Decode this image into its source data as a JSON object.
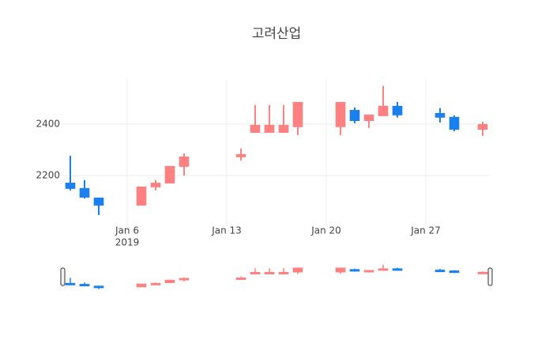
{
  "chart_data": {
    "type": "candlestick",
    "title": "고려산업",
    "x": [
      "2019-01-02",
      "2019-01-03",
      "2019-01-04",
      "2019-01-07",
      "2019-01-08",
      "2019-01-09",
      "2019-01-10",
      "2019-01-14",
      "2019-01-15",
      "2019-01-16",
      "2019-01-17",
      "2019-01-18",
      "2019-01-21",
      "2019-01-22",
      "2019-01-23",
      "2019-01-24",
      "2019-01-25",
      "2019-01-28",
      "2019-01-29",
      "2019-01-31"
    ],
    "open": [
      2172,
      2151,
      2114,
      2083,
      2154,
      2169,
      2234,
      2271,
      2366,
      2366,
      2366,
      2388,
      2388,
      2455,
      2412,
      2431,
      2471,
      2443,
      2428,
      2378
    ],
    "high": [
      2277,
      2182,
      2114,
      2157,
      2182,
      2237,
      2286,
      2305,
      2474,
      2474,
      2474,
      2486,
      2486,
      2465,
      2437,
      2548,
      2486,
      2462,
      2434,
      2409
    ],
    "low": [
      2142,
      2111,
      2046,
      2083,
      2142,
      2169,
      2200,
      2258,
      2366,
      2366,
      2366,
      2357,
      2357,
      2403,
      2385,
      2431,
      2425,
      2406,
      2372,
      2354
    ],
    "close": [
      2148,
      2114,
      2083,
      2157,
      2172,
      2237,
      2274,
      2283,
      2397,
      2397,
      2397,
      2486,
      2486,
      2412,
      2437,
      2471,
      2434,
      2425,
      2378,
      2400
    ],
    "increasing_color": "#ff8080",
    "decreasing_color": "#1a80f0",
    "xlim": [
      "2019-01-01T12:00",
      "2019-01-31T12:00"
    ],
    "xticks": [
      {
        "value": "2019-01-06",
        "label": "Jan 6"
      },
      {
        "value": "2019-01-13",
        "label": "Jan 13"
      },
      {
        "value": "2019-01-20",
        "label": "Jan 20"
      },
      {
        "value": "2019-01-27",
        "label": "Jan 27"
      }
    ],
    "x_year_label": "2019",
    "ylim": [
      2006,
      2575
    ],
    "yticks": [
      2200,
      2400
    ],
    "grid": true,
    "rangeslider": true
  }
}
